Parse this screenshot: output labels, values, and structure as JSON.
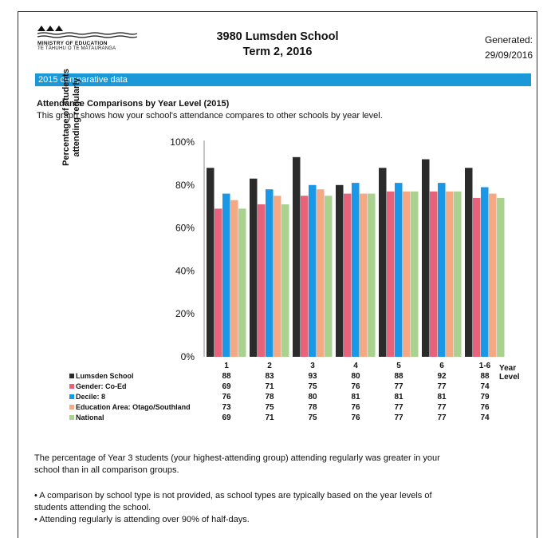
{
  "header": {
    "logo_line1": "MINISTRY OF EDUCATION",
    "logo_line2": "TE TĀHUHU O TE MĀTAURANGA",
    "title_line1": "3980 Lumsden School",
    "title_line2": "Term 2, 2016",
    "generated_label": "Generated:",
    "generated_date": "29/09/2016"
  },
  "banner": {
    "text": "2015 comparative data"
  },
  "section": {
    "title": "Attendance Comparisons by Year Level (2015)",
    "description": "This graph shows how your school's attendance compares to other schools by year level."
  },
  "notes": {
    "summary_line1": "The percentage of Year 3 students (your highest-attending group) attending regularly was greater in your",
    "summary_line2": "school than in all comparison groups.",
    "bullet1_line1": "• A comparison by school type is not provided, as school types are typically based on the year levels of",
    "bullet1_line2": "students attending the school.",
    "bullet2": "• Attending regularly is attending over 90% of half-days."
  },
  "chart_data": {
    "type": "bar",
    "title": "",
    "ylabel": "Percentage of students attending regularly",
    "xlabel": "Year Level",
    "ylim": [
      0,
      100
    ],
    "yticks": [
      "0%",
      "20%",
      "40%",
      "60%",
      "80%",
      "100%"
    ],
    "categories": [
      "1",
      "2",
      "3",
      "4",
      "5",
      "6",
      "1-6"
    ],
    "series": [
      {
        "name": "Lumsden School",
        "color": "#2b2b2b",
        "values": [
          88,
          83,
          93,
          80,
          88,
          92,
          88
        ]
      },
      {
        "name": "Gender: Co-Ed",
        "color": "#e8627c",
        "values": [
          69,
          71,
          75,
          76,
          77,
          77,
          74
        ]
      },
      {
        "name": "Decile: 8",
        "color": "#1a98e8",
        "values": [
          76,
          78,
          80,
          81,
          81,
          81,
          79
        ]
      },
      {
        "name": "Education Area: Otago/Southland",
        "color": "#f5a982",
        "values": [
          73,
          75,
          78,
          76,
          77,
          77,
          76
        ]
      },
      {
        "name": "National",
        "color": "#a9d28e",
        "values": [
          69,
          71,
          75,
          76,
          77,
          77,
          74
        ]
      }
    ],
    "legend": "table-left",
    "grid": false
  }
}
